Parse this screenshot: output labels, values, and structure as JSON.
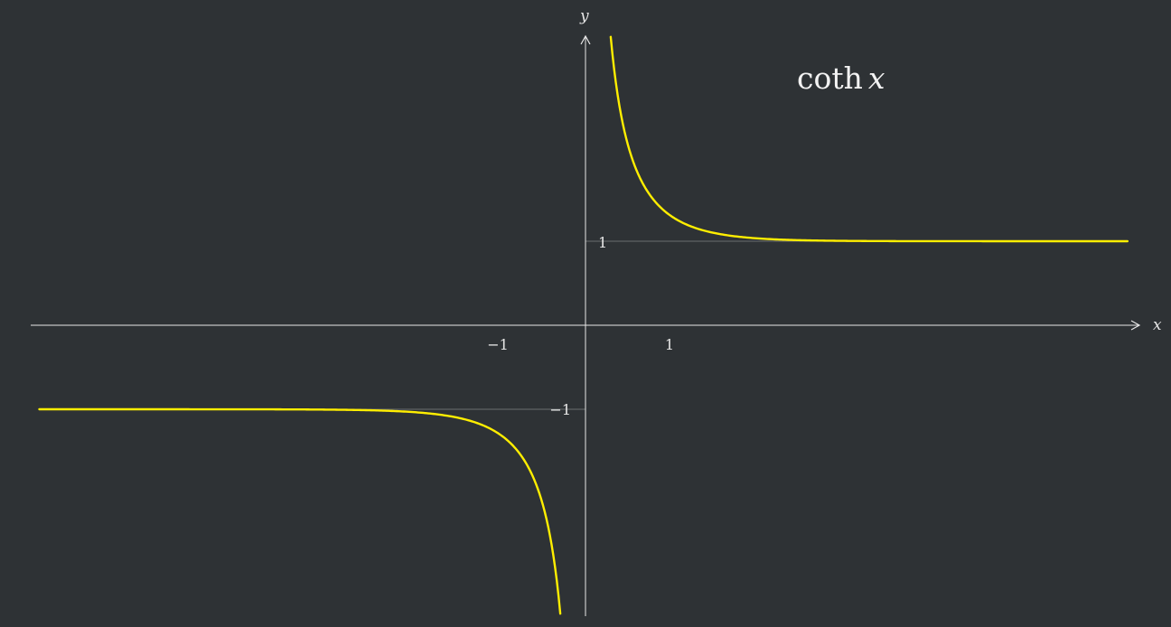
{
  "chart_data": {
    "type": "line",
    "title": "coth",
    "title_var": "x",
    "function": "coth(x)",
    "xlabel": "x",
    "ylabel": "y",
    "xlim": [
      -6.6,
      6.55
    ],
    "ylim": [
      -3.4,
      3.4
    ],
    "x_ticks": [
      {
        "value": -1,
        "label": "−1"
      },
      {
        "value": 1,
        "label": "1"
      }
    ],
    "y_ticks": [
      {
        "value": 1,
        "label": "1"
      },
      {
        "value": -1,
        "label": "−1"
      }
    ],
    "asymptotes_y": [
      1,
      -1
    ],
    "series": [
      {
        "x": [
          0.3,
          0.35,
          0.4,
          0.5,
          0.6,
          0.7,
          0.8,
          1.0,
          1.25,
          1.5,
          2.0,
          2.5,
          3.0,
          4.0,
          5.0,
          6.45
        ],
        "y": [
          3.43,
          2.97,
          2.63,
          2.16,
          1.86,
          1.65,
          1.51,
          1.31,
          1.18,
          1.1,
          1.04,
          1.01,
          1.0,
          1.0,
          1.0,
          1.0
        ]
      },
      {
        "x": [
          -6.5,
          -5.0,
          -4.0,
          -3.0,
          -2.5,
          -2.0,
          -1.5,
          -1.25,
          -1.0,
          -0.8,
          -0.7,
          -0.6,
          -0.5,
          -0.4,
          -0.35,
          -0.3
        ],
        "y": [
          -1.0,
          -1.0,
          -1.0,
          -1.0,
          -1.01,
          -1.04,
          -1.1,
          -1.18,
          -1.31,
          -1.51,
          -1.65,
          -1.86,
          -2.16,
          -2.63,
          -2.97,
          -3.43
        ]
      }
    ],
    "colors": {
      "background": "#2e3235",
      "curve": "#ffee00",
      "axis": "#e8e8e8",
      "asymptote": "#6a6e70"
    },
    "grid": false
  }
}
